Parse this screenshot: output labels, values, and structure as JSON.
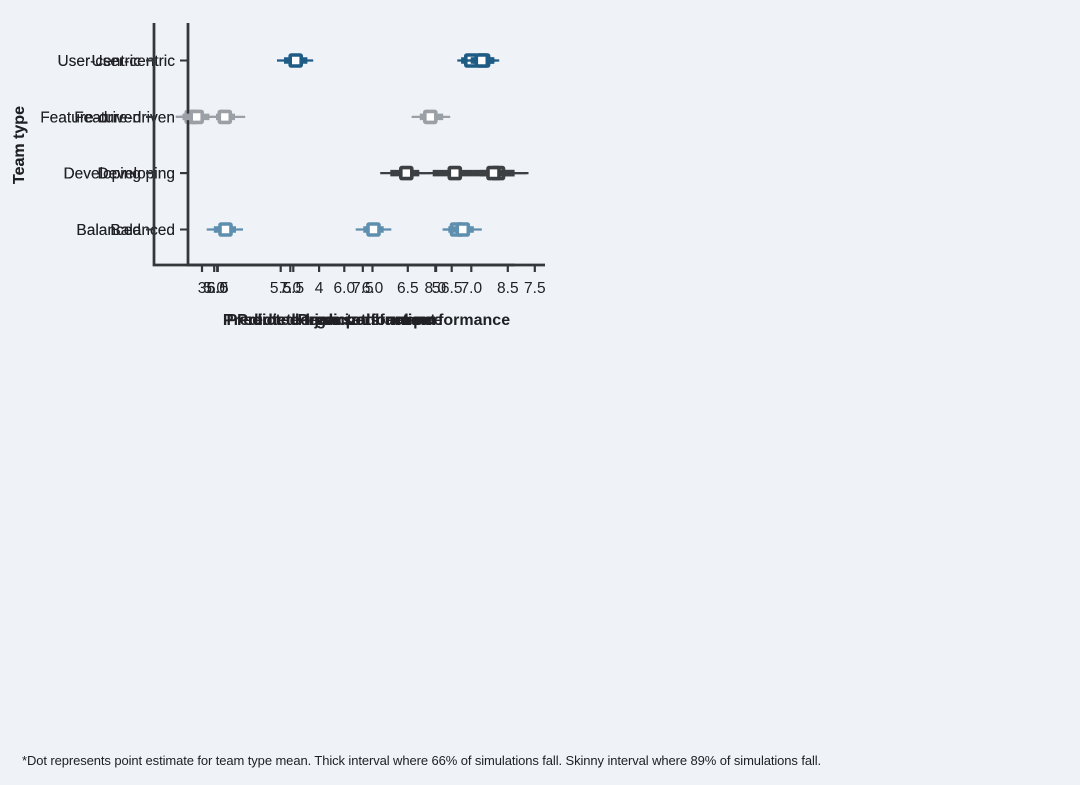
{
  "footnote": "*Dot represents point estimate for team type mean. Thick interval where 66% of simulations fall. Skinny interval where 89% of simulations fall.",
  "palette": {
    "User-centric": "#1f5c85",
    "Feature-driven": "#9aa0a6",
    "Developing": "#3c4043",
    "Balanced": "#5f8fae"
  },
  "colors": {
    "background": "#eff3f7",
    "text": "#202124",
    "axis": "#33373a",
    "marker_fill": "#ffffff"
  },
  "chart_data": [
    {
      "type": "point-interval",
      "title": "",
      "xlabel": "Predicted organizational performance",
      "ylabel": "Team type",
      "xlim": [
        4.77,
        7.58
      ],
      "xticks": [
        5.0,
        5.5,
        6.0,
        6.5,
        7.0,
        7.5
      ],
      "xtick_labels": [
        "5.0",
        "5.5",
        "6.0",
        "6.5",
        "7.0",
        "7.5"
      ],
      "categories": [
        "User-centric",
        "Feature-driven",
        "Developing",
        "Balanced"
      ],
      "points": [
        {
          "team": "User-centric",
          "estimate": 7.0,
          "interval_66": [
            6.92,
            7.07
          ],
          "interval_89": [
            6.89,
            7.12
          ]
        },
        {
          "team": "Feature-driven",
          "estimate": 5.06,
          "interval_66": [
            4.99,
            5.14
          ],
          "interval_89": [
            4.91,
            5.22
          ]
        },
        {
          "team": "Developing",
          "estimate": 7.21,
          "interval_66": [
            7.07,
            7.34
          ],
          "interval_89": [
            6.98,
            7.45
          ]
        },
        {
          "team": "Balanced",
          "estimate": 6.23,
          "interval_66": [
            6.15,
            6.31
          ],
          "interval_89": [
            6.09,
            6.37
          ]
        }
      ]
    },
    {
      "type": "point-interval",
      "title": "",
      "xlabel": "Predicted team performance",
      "ylabel": "",
      "xlim": [
        6.06,
        8.55
      ],
      "xticks": [
        6.5,
        7.0,
        7.5,
        8.0,
        8.5
      ],
      "xtick_labels": [
        "6.5",
        "7.0",
        "7.5",
        "8.0",
        "8.5"
      ],
      "categories": [
        "User-centric",
        "Feature-driven",
        "Developing",
        "Balanced"
      ],
      "points": [
        {
          "team": "User-centric",
          "estimate": 8.33,
          "interval_66": [
            8.26,
            8.4
          ],
          "interval_89": [
            8.22,
            8.42
          ]
        },
        {
          "team": "Feature-driven",
          "estimate": 6.32,
          "interval_66": [
            6.26,
            6.38
          ],
          "interval_89": [
            6.21,
            6.43
          ]
        },
        {
          "team": "Developing",
          "estimate": 7.8,
          "interval_66": [
            7.69,
            7.89
          ],
          "interval_89": [
            7.62,
            7.97
          ]
        },
        {
          "team": "Balanced",
          "estimate": 8.15,
          "interval_66": [
            8.09,
            8.2
          ],
          "interval_89": [
            8.05,
            8.25
          ]
        }
      ]
    },
    {
      "type": "point-interval",
      "title": "",
      "xlabel": "Predicted burnout",
      "ylabel": "Team type",
      "xlim": [
        2.88,
        5.93
      ],
      "xticks": [
        3,
        4,
        5
      ],
      "xtick_labels": [
        "3",
        "4",
        "5"
      ],
      "categories": [
        "User-centric",
        "Feature-driven",
        "Developing",
        "Balanced"
      ],
      "points": [
        {
          "team": "User-centric",
          "estimate": 3.8,
          "interval_66": [
            3.7,
            3.9
          ],
          "interval_89": [
            3.64,
            3.95
          ]
        },
        {
          "team": "Feature-driven",
          "estimate": 4.95,
          "interval_66": [
            4.86,
            5.06
          ],
          "interval_89": [
            4.79,
            5.12
          ]
        },
        {
          "team": "Developing",
          "estimate": 5.49,
          "interval_66": [
            5.32,
            5.67
          ],
          "interval_89": [
            5.21,
            5.77
          ]
        },
        {
          "team": "Balanced",
          "estimate": 3.2,
          "interval_66": [
            3.1,
            3.29
          ],
          "interval_89": [
            3.04,
            3.35
          ]
        }
      ]
    },
    {
      "type": "point-interval",
      "title": "",
      "xlabel": "Predicted job satisfaction",
      "ylabel": "",
      "xlim": [
        4.62,
        6.9
      ],
      "xticks": [
        5.0,
        5.5,
        6.0,
        6.5
      ],
      "xtick_labels": [
        "5.0",
        "5.5",
        "6.0",
        "6.5"
      ],
      "categories": [
        "User-centric",
        "Feature-driven",
        "Developing",
        "Balanced"
      ],
      "points": [
        {
          "team": "User-centric",
          "estimate": 6.69,
          "interval_66": [
            6.62,
            6.77
          ],
          "interval_89": [
            6.57,
            6.8
          ]
        },
        {
          "team": "Feature-driven",
          "estimate": 4.89,
          "interval_66": [
            4.8,
            4.97
          ],
          "interval_89": [
            4.76,
            5.01
          ]
        },
        {
          "team": "Developing",
          "estimate": 6.52,
          "interval_66": [
            6.38,
            6.64
          ],
          "interval_89": [
            6.3,
            6.72
          ]
        },
        {
          "team": "Balanced",
          "estimate": 6.57,
          "interval_66": [
            6.5,
            6.64
          ],
          "interval_89": [
            6.45,
            6.69
          ]
        }
      ]
    }
  ]
}
